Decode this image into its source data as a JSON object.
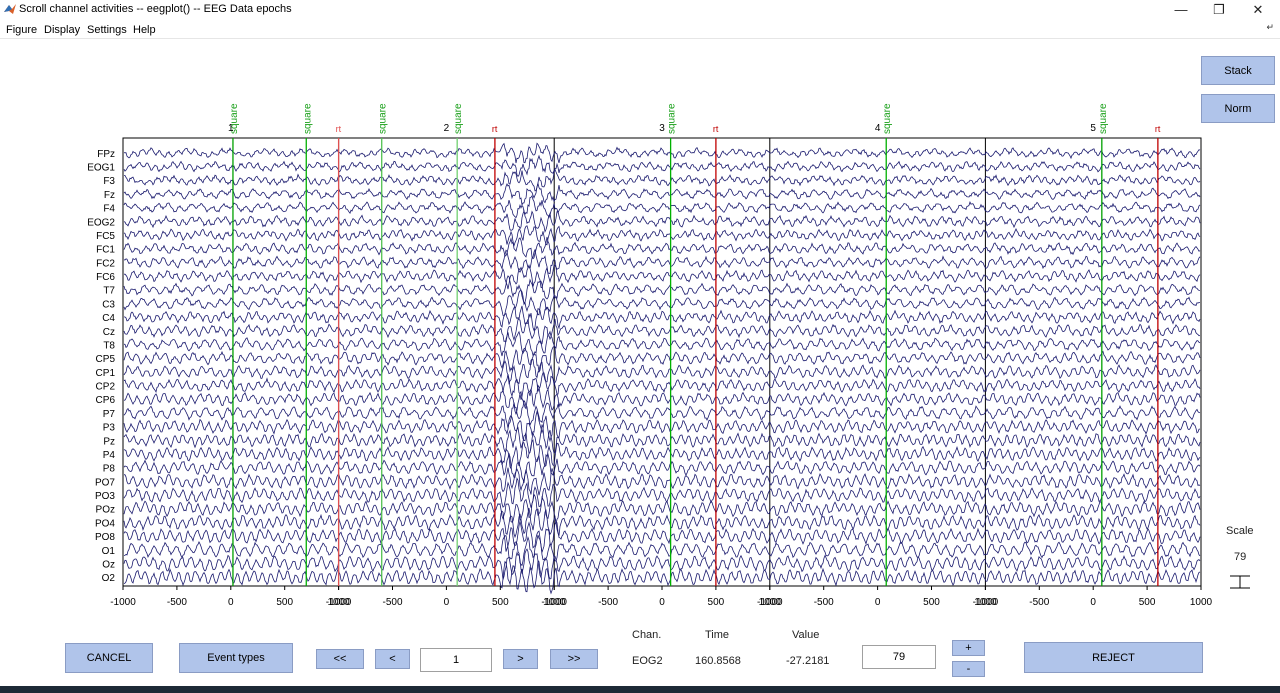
{
  "window": {
    "title": "Scroll channel activities -- eegplot() -- EEG Data epochs"
  },
  "menu": [
    "Figure",
    "Display",
    "Settings",
    "Help"
  ],
  "side_buttons": {
    "stack": "Stack",
    "norm": "Norm"
  },
  "channels": [
    "FPz",
    "EOG1",
    "F3",
    "Fz",
    "F4",
    "EOG2",
    "FC5",
    "FC1",
    "FC2",
    "FC6",
    "T7",
    "C3",
    "C4",
    "Cz",
    "T8",
    "CP5",
    "CP1",
    "CP2",
    "CP6",
    "P7",
    "P3",
    "Pz",
    "P4",
    "P8",
    "PO7",
    "PO3",
    "POz",
    "PO4",
    "PO8",
    "O1",
    "Oz",
    "O2"
  ],
  "epochs": {
    "count": 5,
    "range_ms": [
      -1000,
      1000
    ],
    "labels": [
      "1",
      "2",
      "3",
      "4",
      "5"
    ],
    "tick_labels": [
      "-1000",
      "-500",
      "0",
      "500",
      "1000"
    ],
    "tick_values": [
      -1000,
      -500,
      0,
      500,
      1000
    ]
  },
  "events": [
    {
      "epoch": 1,
      "latency_ms": 20,
      "label": "square",
      "color": "#00a000"
    },
    {
      "epoch": 1,
      "latency_ms": 700,
      "label": "square",
      "color": "#00b000"
    },
    {
      "epoch": 1,
      "latency_ms": 1000,
      "label": "rt",
      "color": "#e05050"
    },
    {
      "epoch": 2,
      "latency_ms": -600,
      "label": "square",
      "color": "#50c050"
    },
    {
      "epoch": 2,
      "latency_ms": 100,
      "label": "square",
      "color": "#70d070"
    },
    {
      "epoch": 2,
      "latency_ms": 450,
      "label": "rt",
      "color": "#c00000"
    },
    {
      "epoch": 3,
      "latency_ms": 80,
      "label": "square",
      "color": "#00b000"
    },
    {
      "epoch": 3,
      "latency_ms": 500,
      "label": "rt",
      "color": "#c00000"
    },
    {
      "epoch": 4,
      "latency_ms": 80,
      "label": "square",
      "color": "#00b000"
    },
    {
      "epoch": 5,
      "latency_ms": 80,
      "label": "square",
      "color": "#00a000"
    },
    {
      "epoch": 5,
      "latency_ms": 600,
      "label": "rt",
      "color": "#c00000"
    }
  ],
  "scale": {
    "label": "Scale",
    "value": "79"
  },
  "bottom": {
    "cancel": "CANCEL",
    "event_types": "Event types",
    "first": "<<",
    "prev": "<",
    "epoch_field": "1",
    "next": ">",
    "last": ">>",
    "chan_header": "Chan.",
    "time_header": "Time",
    "value_header": "Value",
    "chan_value": "EOG2",
    "time_value": "160.8568",
    "value_value": "-27.2181",
    "scale_field": "79",
    "plus": "+",
    "minus": "-",
    "reject": "REJECT"
  },
  "colors": {
    "trace": "#1a1a6e",
    "button": "#b0c4ea",
    "epoch_border": "#000000"
  }
}
